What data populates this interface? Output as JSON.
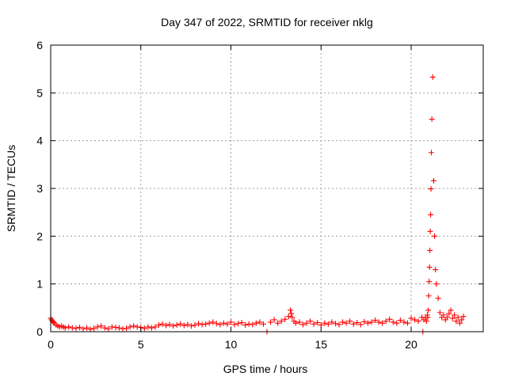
{
  "chart_data": {
    "type": "scatter",
    "title": "Day 347 of 2022, SRMTID for receiver nklg",
    "xlabel": "GPS time / hours",
    "ylabel": "SRMTID / TECUs",
    "xlim": [
      0,
      24
    ],
    "ylim": [
      0,
      6
    ],
    "xticks": [
      0,
      5,
      10,
      15,
      20
    ],
    "yticks": [
      0,
      1,
      2,
      3,
      4,
      5,
      6
    ],
    "xtick_labels": [
      "0",
      "5",
      "10",
      "15",
      "20"
    ],
    "ytick_labels": [
      "0",
      "1",
      "2",
      "3",
      "4",
      "5",
      "6"
    ],
    "grid": true,
    "marker": "+",
    "color": "#ff0000",
    "series": [
      {
        "name": "SRMTID",
        "x": [
          0.0,
          0.05,
          0.1,
          0.15,
          0.2,
          0.3,
          0.4,
          0.5,
          0.6,
          0.7,
          0.8,
          1.0,
          1.2,
          1.4,
          1.6,
          1.8,
          2.0,
          2.2,
          2.4,
          2.6,
          2.8,
          3.0,
          3.2,
          3.4,
          3.6,
          3.8,
          4.0,
          4.2,
          4.4,
          4.6,
          4.8,
          5.0,
          5.2,
          5.4,
          5.6,
          5.8,
          6.0,
          6.2,
          6.4,
          6.6,
          6.8,
          7.0,
          7.2,
          7.4,
          7.6,
          7.8,
          8.0,
          8.2,
          8.4,
          8.6,
          8.8,
          9.0,
          9.2,
          9.4,
          9.6,
          9.8,
          10.0,
          10.2,
          10.4,
          10.6,
          10.8,
          11.0,
          11.2,
          11.4,
          11.6,
          11.8,
          12.0,
          12.2,
          12.4,
          12.6,
          12.8,
          13.0,
          13.2,
          13.3,
          13.35,
          13.4,
          13.5,
          13.6,
          13.8,
          14.0,
          14.2,
          14.4,
          14.6,
          14.8,
          15.0,
          15.2,
          15.4,
          15.6,
          15.8,
          16.0,
          16.2,
          16.4,
          16.6,
          16.8,
          17.0,
          17.2,
          17.4,
          17.6,
          17.8,
          18.0,
          18.2,
          18.4,
          18.6,
          18.8,
          19.0,
          19.2,
          19.4,
          19.6,
          19.8,
          20.0,
          20.2,
          20.4,
          20.6,
          20.65,
          20.7,
          20.8,
          20.85,
          20.9,
          20.92,
          20.95,
          20.97,
          21.0,
          21.02,
          21.04,
          21.06,
          21.08,
          21.1,
          21.12,
          21.15,
          21.2,
          21.25,
          21.3,
          21.35,
          21.4,
          21.5,
          21.6,
          21.7,
          21.8,
          21.9,
          22.0,
          22.1,
          22.2,
          22.3,
          22.4,
          22.5,
          22.6,
          22.7,
          22.8,
          22.9
        ],
        "y": [
          0.28,
          0.25,
          0.22,
          0.2,
          0.18,
          0.14,
          0.12,
          0.1,
          0.12,
          0.1,
          0.08,
          0.1,
          0.08,
          0.07,
          0.09,
          0.06,
          0.08,
          0.05,
          0.07,
          0.1,
          0.12,
          0.08,
          0.06,
          0.1,
          0.09,
          0.08,
          0.06,
          0.07,
          0.1,
          0.12,
          0.1,
          0.09,
          0.07,
          0.1,
          0.08,
          0.1,
          0.14,
          0.16,
          0.13,
          0.15,
          0.12,
          0.14,
          0.16,
          0.13,
          0.15,
          0.12,
          0.14,
          0.17,
          0.15,
          0.16,
          0.18,
          0.2,
          0.17,
          0.15,
          0.18,
          0.16,
          0.2,
          0.15,
          0.17,
          0.19,
          0.14,
          0.16,
          0.15,
          0.18,
          0.2,
          0.16,
          0.0,
          0.2,
          0.25,
          0.18,
          0.22,
          0.26,
          0.32,
          0.45,
          0.38,
          0.3,
          0.22,
          0.18,
          0.2,
          0.15,
          0.18,
          0.22,
          0.16,
          0.19,
          0.14,
          0.18,
          0.16,
          0.2,
          0.17,
          0.15,
          0.2,
          0.18,
          0.22,
          0.16,
          0.19,
          0.15,
          0.21,
          0.18,
          0.2,
          0.24,
          0.2,
          0.18,
          0.22,
          0.26,
          0.2,
          0.18,
          0.24,
          0.2,
          0.18,
          0.28,
          0.25,
          0.22,
          0.3,
          0.0,
          0.25,
          0.3,
          0.22,
          0.35,
          0.3,
          0.45,
          0.75,
          1.05,
          1.35,
          1.7,
          2.1,
          2.45,
          2.99,
          3.75,
          4.45,
          5.33,
          3.16,
          2.0,
          1.3,
          1.0,
          0.7,
          0.4,
          0.3,
          0.35,
          0.25,
          0.3,
          0.38,
          0.45,
          0.28,
          0.35,
          0.22,
          0.3,
          0.18,
          0.25,
          0.32
        ]
      }
    ]
  }
}
